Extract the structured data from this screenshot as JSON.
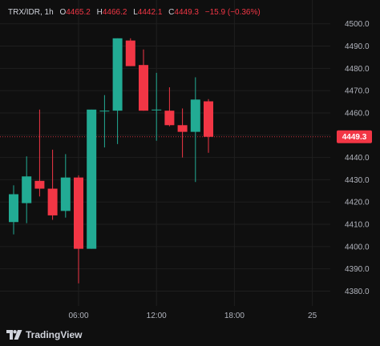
{
  "legend": {
    "symbol": "TRX/IDR, 1h",
    "open_label": "O",
    "open": "4465.2",
    "high_label": "H",
    "high": "4466.2",
    "low_label": "L",
    "low": "4442.1",
    "close_label": "C",
    "close": "4449.3",
    "change": "−15.9 (−0.36%)"
  },
  "price_tag": "4449.3",
  "brand": "TradingView",
  "colors": {
    "up": "#22ab94",
    "down": "#f23645",
    "background": "#0f0f0f",
    "grid": "#1f1f1f",
    "price_tag": "#f23645"
  },
  "chart_data": {
    "type": "candlestick",
    "y_axis": {
      "ticks": [
        "4500.0",
        "4490.0",
        "4480.0",
        "4470.0",
        "4460.0",
        "4450.0",
        "4440.0",
        "4430.0",
        "4420.0",
        "4410.0",
        "4400.0",
        "4390.0",
        "4380.0"
      ],
      "range": [
        4375.5,
        4503.5
      ],
      "position": "right"
    },
    "x_axis": {
      "ticks": [
        {
          "label": "06:00",
          "index": 5
        },
        {
          "label": "12:00",
          "index": 11
        },
        {
          "label": "18:00",
          "index": 17
        },
        {
          "label": "25",
          "index": 23
        }
      ]
    },
    "grid": true,
    "last_price": 4449.3,
    "candles": [
      {
        "open": 4411.0,
        "high": 4427.5,
        "low": 4405.5,
        "close": 4423.5
      },
      {
        "open": 4419.5,
        "high": 4440.5,
        "low": 4410.5,
        "close": 4431.5
      },
      {
        "open": 4429.5,
        "high": 4461.5,
        "low": 4422.5,
        "close": 4426.0
      },
      {
        "open": 4426.0,
        "high": 4443.5,
        "low": 4412.0,
        "close": 4414.0
      },
      {
        "open": 4416.0,
        "high": 4441.5,
        "low": 4413.0,
        "close": 4431.0
      },
      {
        "open": 4431.0,
        "high": 4432.0,
        "low": 4383.5,
        "close": 4399.0
      },
      {
        "open": 4399.0,
        "high": 4461.5,
        "low": 4399.0,
        "close": 4461.5
      },
      {
        "open": 4461.0,
        "high": 4468.0,
        "low": 4444.5,
        "close": 4461.0
      },
      {
        "open": 4461.0,
        "high": 4493.5,
        "low": 4446.0,
        "close": 4493.5
      },
      {
        "open": 4492.5,
        "high": 4493.5,
        "low": 4481.0,
        "close": 4481.0
      },
      {
        "open": 4481.5,
        "high": 4488.5,
        "low": 4461.0,
        "close": 4461.0
      },
      {
        "open": 4461.5,
        "high": 4478.0,
        "low": 4447.5,
        "close": 4461.5
      },
      {
        "open": 4461.0,
        "high": 4471.5,
        "low": 4454.0,
        "close": 4454.5
      },
      {
        "open": 4454.5,
        "high": 4462.0,
        "low": 4440.0,
        "close": 4451.5
      },
      {
        "open": 4451.5,
        "high": 4476.0,
        "low": 4429.0,
        "close": 4466.0
      },
      {
        "open": 4465.2,
        "high": 4466.2,
        "low": 4442.1,
        "close": 4449.3
      }
    ]
  }
}
